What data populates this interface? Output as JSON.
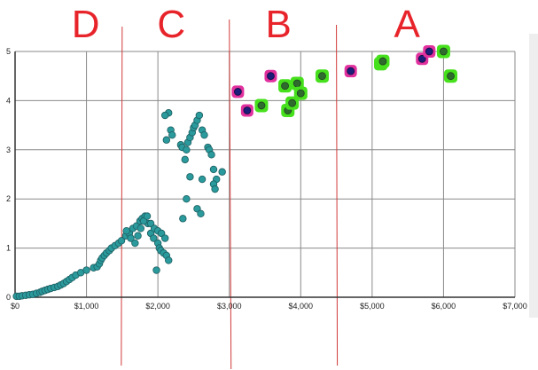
{
  "chart_data": {
    "type": "scatter",
    "title": "",
    "xlabel": "",
    "ylabel": "",
    "xlim": [
      0,
      7000
    ],
    "ylim": [
      0,
      5
    ],
    "grid": true,
    "x_ticks": [
      "$0",
      "$1,000",
      "$2,000",
      "$3,000",
      "$4,000",
      "$5,000",
      "$6,000",
      "$7,000"
    ],
    "y_ticks": [
      "0",
      "1",
      "2",
      "3",
      "4",
      "5"
    ],
    "colors": {
      "point": "#2a9a9c",
      "highlight_pink": "#e0319e",
      "highlight_green": "#46e01c",
      "inner_dark": "#1c1c7a",
      "inner_green": "#2f6b2f",
      "annotation_red": "#e8242b"
    },
    "zone_labels": [
      "D",
      "C",
      "B",
      "A"
    ],
    "zone_divider_x": [
      1500,
      3000,
      4500
    ],
    "series": [
      {
        "marker": "teal",
        "x": [
          20,
          60,
          100,
          150,
          200,
          250,
          300,
          350,
          380,
          420,
          460,
          500,
          550,
          600,
          640,
          680,
          720,
          760,
          800,
          850,
          920,
          1000,
          1100,
          1150,
          1180,
          1200,
          1220,
          1250,
          1280,
          1320,
          1350,
          1400,
          1450,
          1490,
          1550,
          1600,
          1650,
          1700,
          1750,
          1780,
          1820,
          1860,
          1900,
          1940,
          2000,
          2020,
          2040,
          2080,
          2120,
          2150,
          1560,
          1620,
          1680,
          1720,
          1760,
          1800,
          1850,
          1900,
          1950,
          2000,
          2050,
          2100,
          2120,
          2150,
          2180,
          2200,
          2320,
          2340,
          2380,
          2400,
          2420,
          2450,
          2480,
          2500,
          2520,
          2550,
          2580,
          2620,
          2650,
          2700,
          2720,
          2750,
          2780,
          2820,
          2550,
          2600,
          2350,
          2400,
          2620,
          2900,
          2100,
          1980,
          2450,
          2780,
          2800
        ],
        "y": [
          0.02,
          0.02,
          0.03,
          0.04,
          0.05,
          0.06,
          0.08,
          0.1,
          0.12,
          0.14,
          0.16,
          0.18,
          0.2,
          0.22,
          0.25,
          0.28,
          0.32,
          0.36,
          0.4,
          0.45,
          0.5,
          0.55,
          0.6,
          0.62,
          0.68,
          0.75,
          0.8,
          0.85,
          0.9,
          0.95,
          1.0,
          1.05,
          1.1,
          1.15,
          1.25,
          1.3,
          1.4,
          1.45,
          1.55,
          1.6,
          1.65,
          1.5,
          1.3,
          1.2,
          1.1,
          1.0,
          0.95,
          0.9,
          0.85,
          0.75,
          1.35,
          1.2,
          1.1,
          1.25,
          1.4,
          1.55,
          1.65,
          1.5,
          1.4,
          1.35,
          1.3,
          1.2,
          3.2,
          3.75,
          3.4,
          3.3,
          3.1,
          3.05,
          2.8,
          3.0,
          3.15,
          3.25,
          3.35,
          3.45,
          3.5,
          3.6,
          3.7,
          3.4,
          3.3,
          3.05,
          3.0,
          2.9,
          2.6,
          2.4,
          1.8,
          1.7,
          1.6,
          2.0,
          2.4,
          2.55,
          3.7,
          0.55,
          2.45,
          2.3,
          2.2
        ]
      },
      {
        "marker": "pink",
        "x": [
          3120,
          3250,
          3580,
          4700,
          5700,
          5800
        ],
        "y": [
          4.18,
          3.8,
          4.5,
          4.6,
          4.85,
          5.0
        ]
      },
      {
        "marker": "green",
        "x": [
          3450,
          3780,
          3820,
          3880,
          3950,
          4000,
          4300,
          5120,
          5150,
          6000,
          6100
        ],
        "y": [
          3.9,
          4.3,
          3.8,
          3.95,
          4.35,
          4.15,
          4.5,
          4.75,
          4.8,
          5.0,
          4.5
        ]
      }
    ]
  }
}
